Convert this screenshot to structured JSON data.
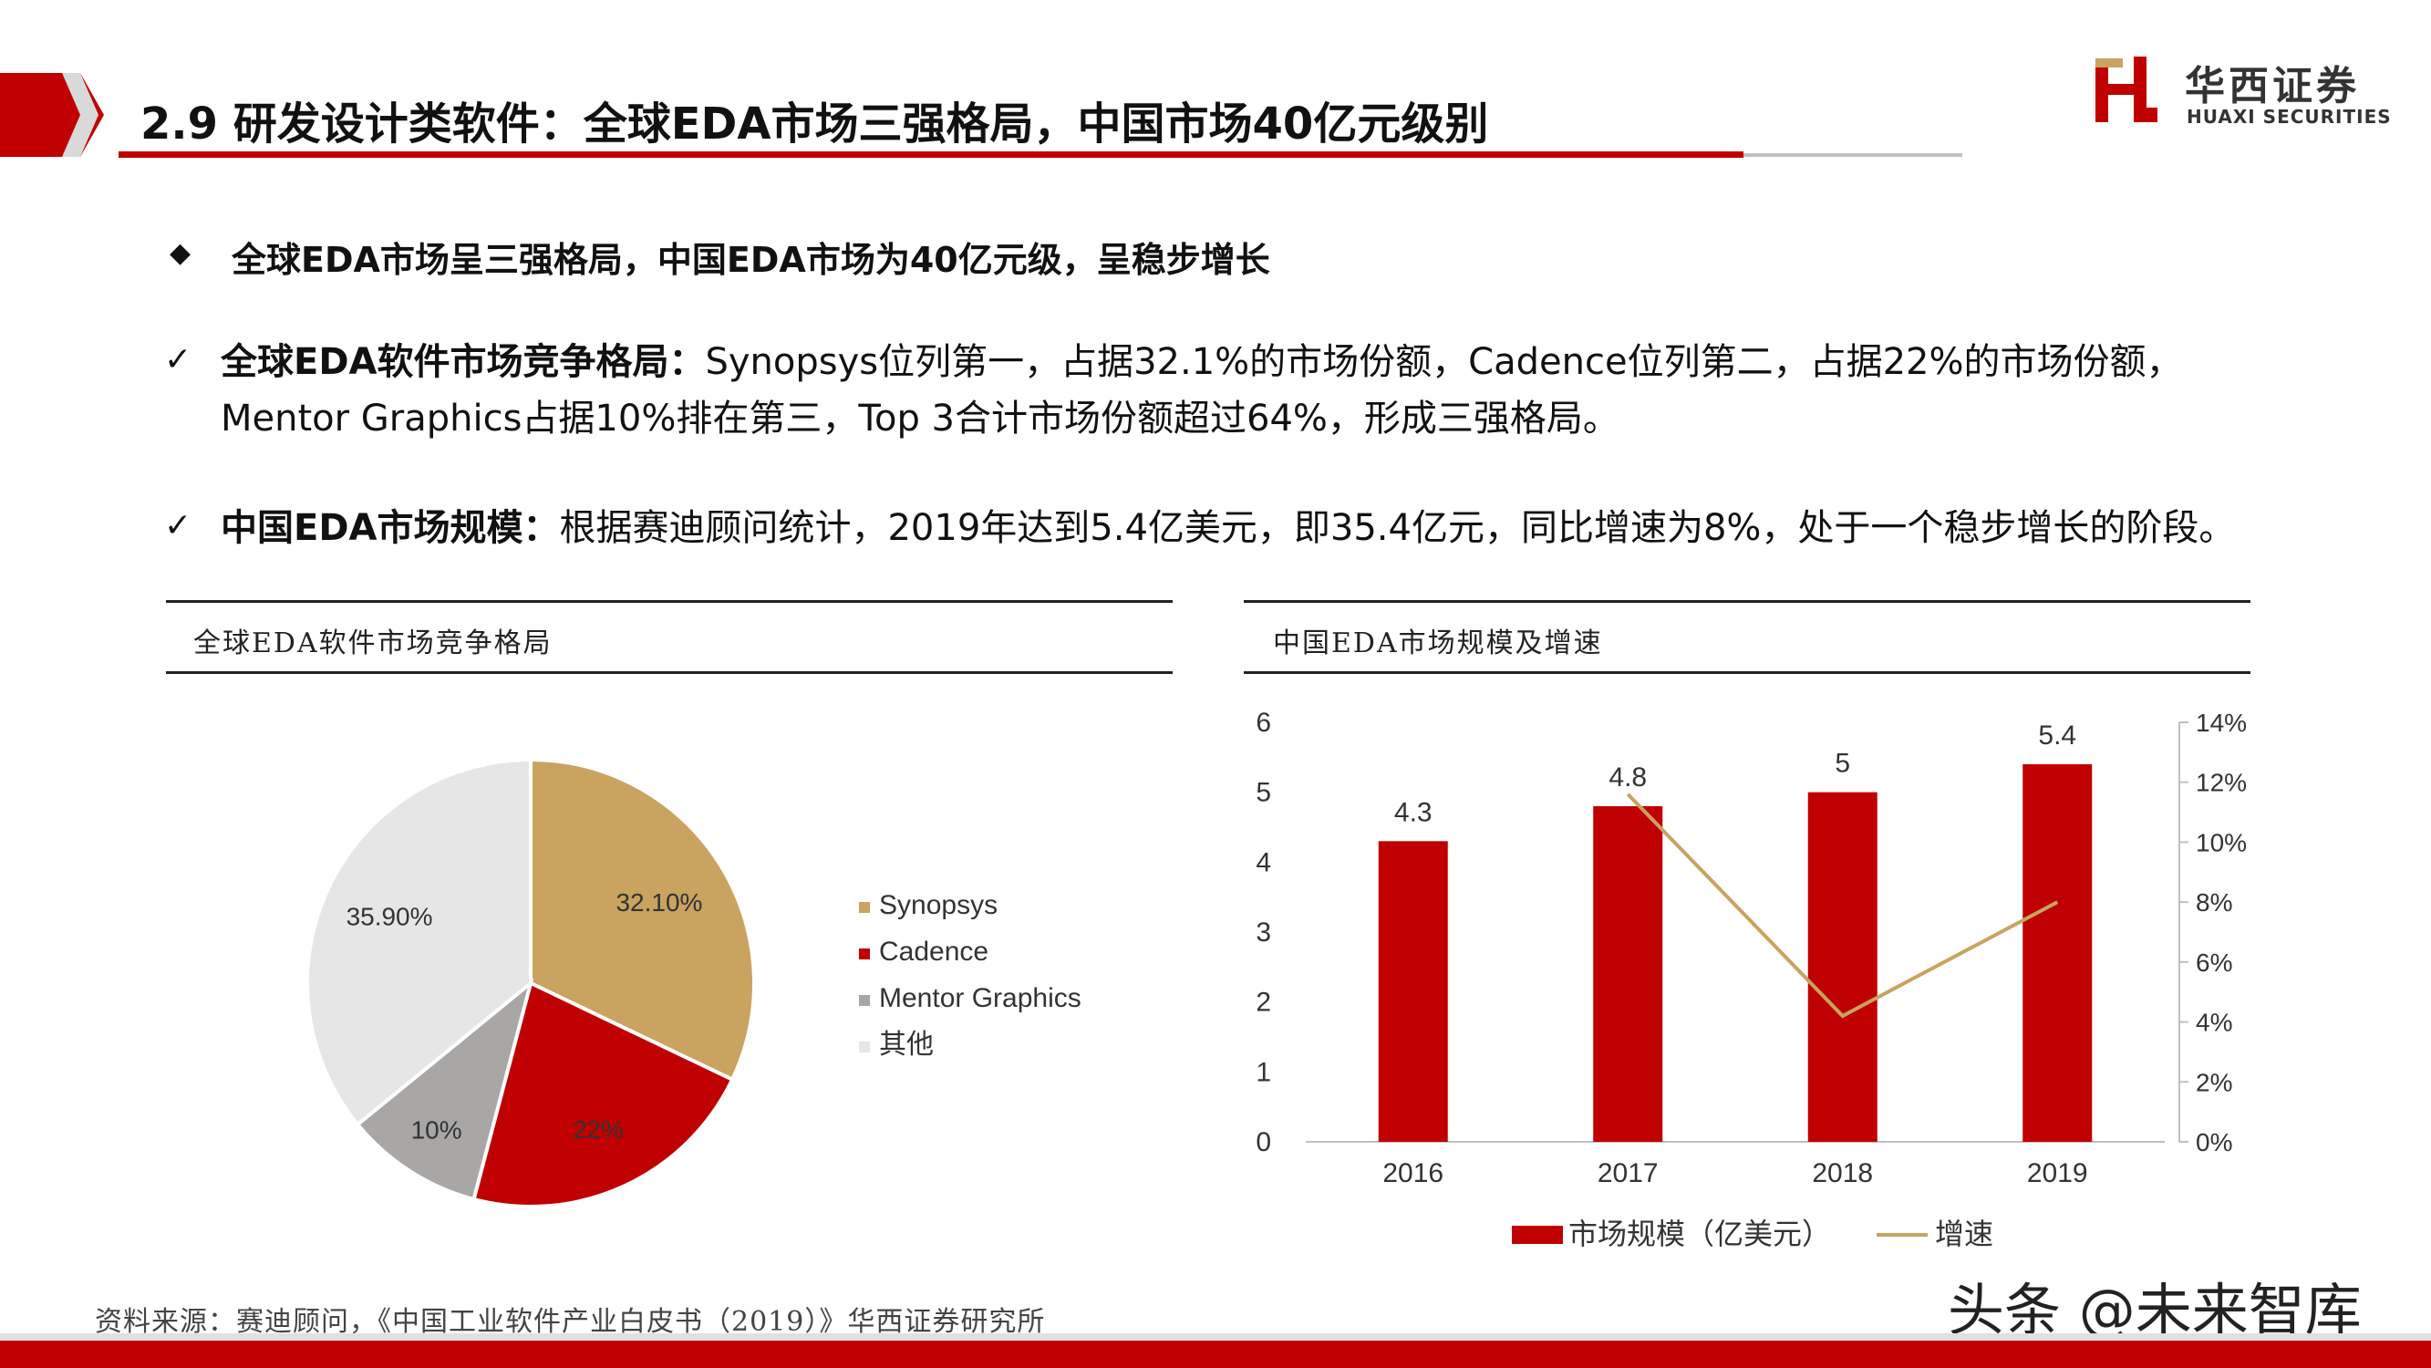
{
  "header": {
    "title": "2.9 研发设计类软件：全球EDA市场三强格局，中国市场40亿元级别",
    "logo_cn": "华西证券",
    "logo_en": "HUAXI SECURITIES",
    "accent_color": "#c00000"
  },
  "summary": {
    "bullet_icon": "diamond-icon",
    "text": "全球EDA市场呈三强格局，中国EDA市场为40亿元级，呈稳步增长"
  },
  "points": [
    {
      "label": "全球EDA软件市场竞争格局：",
      "text": "Synopsys位列第一，占据32.1%的市场份额，Cadence位列第二，占据22%的市场份额，Mentor Graphics占据10%排在第三，Top 3合计市场份额超过64%，形成三强格局。"
    },
    {
      "label": "中国EDA市场规模：",
      "text": "根据赛迪顾问统计，2019年达到5.4亿美元，即35.4亿元，同比增速为8%，处于一个稳步增长的阶段。"
    }
  ],
  "check_icon": "check-icon",
  "chart_data": [
    {
      "type": "pie",
      "title": "全球EDA软件市场竞争格局",
      "slices": [
        {
          "name": "Synopsys",
          "value": 32.1,
          "label": "32.10%",
          "color": "#c9a35f"
        },
        {
          "name": "Cadence",
          "value": 22,
          "label": "22%",
          "color": "#c00000"
        },
        {
          "name": "Mentor Graphics",
          "value": 10,
          "label": "10%",
          "color": "#a9a6a6"
        },
        {
          "name": "其他",
          "value": 35.9,
          "label": "35.90%",
          "color": "#e7e6e6"
        }
      ],
      "legend_position": "right"
    },
    {
      "type": "bar",
      "title": "中国EDA市场规模及增速",
      "categories": [
        "2016",
        "2017",
        "2018",
        "2019"
      ],
      "series": [
        {
          "name": "市场规模（亿美元）",
          "type": "bar",
          "axis": "left",
          "values": [
            4.3,
            4.8,
            5,
            5.4
          ],
          "labels": [
            "4.3",
            "4.8",
            "5",
            "5.4"
          ],
          "color": "#c00000"
        },
        {
          "name": "增速",
          "type": "line",
          "axis": "right",
          "values": [
            null,
            11.6,
            4.2,
            8.0
          ],
          "color": "#c9a35f"
        }
      ],
      "y_left": {
        "min": 0,
        "max": 6,
        "ticks": [
          "0",
          "1",
          "2",
          "3",
          "4",
          "5",
          "6"
        ]
      },
      "y_right": {
        "min": 0,
        "max": 14,
        "ticks": [
          "0%",
          "2%",
          "4%",
          "6%",
          "8%",
          "10%",
          "12%",
          "14%"
        ]
      },
      "grid": false,
      "legend_position": "bottom"
    }
  ],
  "source": "资料来源：赛迪顾问，《中国工业软件产业白皮书（2019）》华西证券研究所",
  "watermark": "头条 @未来智库"
}
